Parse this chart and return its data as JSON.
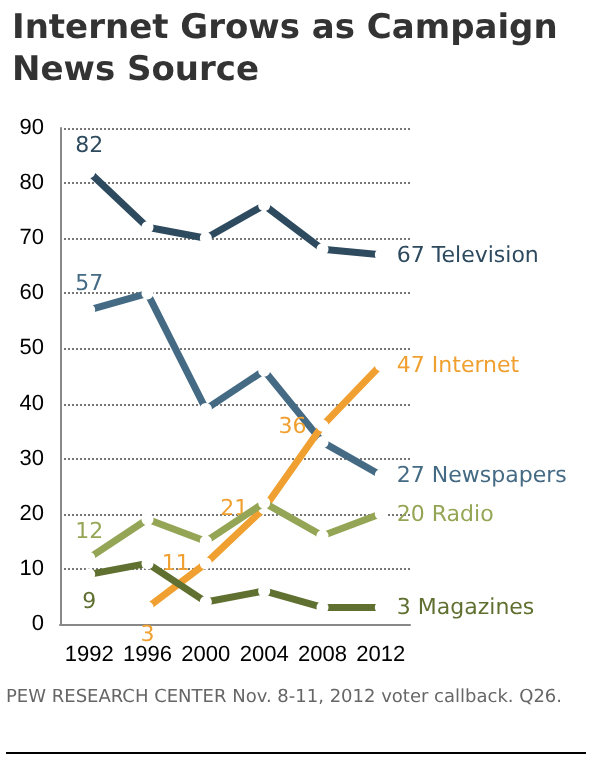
{
  "chart_data": {
    "type": "line",
    "title": "Internet Grows as Campaign News Source",
    "categories": [
      "1992",
      "1996",
      "2000",
      "2004",
      "2008",
      "2012"
    ],
    "series": [
      {
        "name": "Television",
        "color": "#2e4a5e",
        "values": [
          82,
          72,
          70,
          76,
          68,
          67
        ],
        "value_labels": [
          "82",
          null,
          null,
          null,
          null,
          "67"
        ]
      },
      {
        "name": "Newspapers",
        "color": "#456a84",
        "values": [
          57,
          60,
          39,
          46,
          33,
          27
        ],
        "value_labels": [
          "57",
          null,
          null,
          null,
          null,
          "27"
        ]
      },
      {
        "name": "Internet",
        "color": "#f0a030",
        "values": [
          null,
          3,
          11,
          21,
          36,
          47
        ],
        "value_labels": [
          null,
          "3",
          "11",
          "21",
          "36",
          "47"
        ]
      },
      {
        "name": "Radio",
        "color": "#94a656",
        "values": [
          12,
          19,
          15,
          22,
          16,
          20
        ],
        "value_labels": [
          "12",
          null,
          null,
          null,
          null,
          "20"
        ]
      },
      {
        "name": "Magazines",
        "color": "#5f7030",
        "values": [
          9,
          11,
          4,
          6,
          3,
          3
        ],
        "value_labels": [
          "9",
          null,
          null,
          null,
          null,
          "3"
        ]
      }
    ],
    "ylim": [
      0,
      90
    ],
    "yticks": [
      0,
      10,
      20,
      30,
      40,
      50,
      60,
      70,
      80,
      90
    ],
    "grid": "y",
    "legend": false,
    "marker": "circle",
    "line_style": "solid",
    "annotations": [
      "PEW RESEARCH CENTER Nov. 8-11, 2012 voter callback. Q26."
    ]
  }
}
